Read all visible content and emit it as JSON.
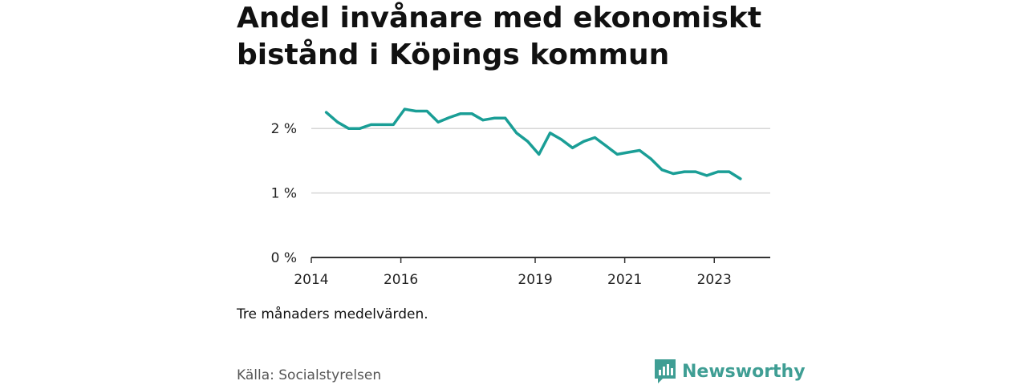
{
  "title": "Andel invånare med ekonomiskt bistånd i Köpings kommun",
  "note": "Tre månaders medelvärden.",
  "source": "Källa: Socialstyrelsen",
  "brand": "Newsworthy",
  "colors": {
    "line": "#1a9e96",
    "brand": "#3f9e94",
    "grid": "#d6d6d6",
    "axis": "#333333"
  },
  "chart_data": {
    "type": "line",
    "title": "Andel invånare med ekonomiskt bistånd i Köpings kommun",
    "xlabel": "",
    "ylabel": "",
    "ylim": [
      0,
      2.5
    ],
    "xlim": [
      2014,
      2024.25
    ],
    "y_ticks": [
      0,
      1,
      2
    ],
    "y_tick_labels": [
      "0 %",
      "1 %",
      "2 %"
    ],
    "x_ticks": [
      2014,
      2016,
      2019,
      2021,
      2023
    ],
    "x_tick_labels": [
      "2014",
      "2016",
      "2019",
      "2021",
      "2023"
    ],
    "grid": true,
    "series": [
      {
        "values": [
          {
            "x": "2014-05",
            "y": 2.25
          },
          {
            "x": "2014-08",
            "y": 2.1
          },
          {
            "x": "2014-11",
            "y": 2.0
          },
          {
            "x": "2015-02",
            "y": 2.0
          },
          {
            "x": "2015-05",
            "y": 2.06
          },
          {
            "x": "2015-08",
            "y": 2.06
          },
          {
            "x": "2015-11",
            "y": 2.06
          },
          {
            "x": "2016-02",
            "y": 2.3
          },
          {
            "x": "2016-05",
            "y": 2.27
          },
          {
            "x": "2016-08",
            "y": 2.27
          },
          {
            "x": "2016-11",
            "y": 2.1
          },
          {
            "x": "2017-02",
            "y": 2.17
          },
          {
            "x": "2017-05",
            "y": 2.23
          },
          {
            "x": "2017-08",
            "y": 2.23
          },
          {
            "x": "2017-11",
            "y": 2.13
          },
          {
            "x": "2018-02",
            "y": 2.16
          },
          {
            "x": "2018-05",
            "y": 2.16
          },
          {
            "x": "2018-08",
            "y": 1.93
          },
          {
            "x": "2018-11",
            "y": 1.8
          },
          {
            "x": "2019-02",
            "y": 1.6
          },
          {
            "x": "2019-05",
            "y": 1.93
          },
          {
            "x": "2019-08",
            "y": 1.83
          },
          {
            "x": "2019-11",
            "y": 1.7
          },
          {
            "x": "2020-02",
            "y": 1.8
          },
          {
            "x": "2020-05",
            "y": 1.86
          },
          {
            "x": "2020-08",
            "y": 1.73
          },
          {
            "x": "2020-11",
            "y": 1.6
          },
          {
            "x": "2021-02",
            "y": 1.63
          },
          {
            "x": "2021-05",
            "y": 1.66
          },
          {
            "x": "2021-08",
            "y": 1.53
          },
          {
            "x": "2021-11",
            "y": 1.36
          },
          {
            "x": "2022-02",
            "y": 1.3
          },
          {
            "x": "2022-05",
            "y": 1.33
          },
          {
            "x": "2022-08",
            "y": 1.33
          },
          {
            "x": "2022-11",
            "y": 1.27
          },
          {
            "x": "2023-02",
            "y": 1.33
          },
          {
            "x": "2023-05",
            "y": 1.33
          },
          {
            "x": "2023-08",
            "y": 1.22
          }
        ]
      }
    ]
  }
}
